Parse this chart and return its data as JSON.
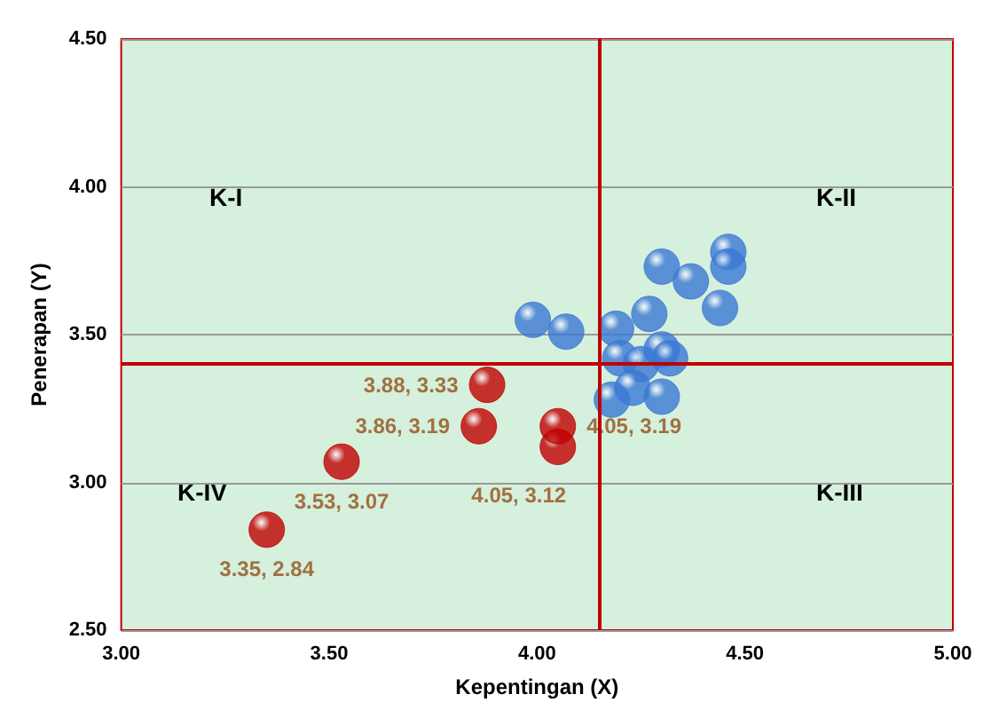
{
  "chart_data": {
    "type": "scatter",
    "xlabel": "Kepentingan (X)",
    "ylabel": "Penerapan (Y)",
    "xlim": [
      3,
      5
    ],
    "ylim": [
      2.5,
      4.5
    ],
    "xticks": [
      {
        "value": 3,
        "label": "3.00"
      },
      {
        "value": 3.5,
        "label": "3.50"
      },
      {
        "value": 4,
        "label": "4.00"
      },
      {
        "value": 4.5,
        "label": "4.50"
      },
      {
        "value": 5,
        "label": "5.00"
      }
    ],
    "yticks": [
      {
        "value": 2.5,
        "label": "2.50"
      },
      {
        "value": 3,
        "label": "3.00"
      },
      {
        "value": 3.5,
        "label": "3.50"
      },
      {
        "value": 4,
        "label": "4.00"
      },
      {
        "value": 4.5,
        "label": "4.50"
      }
    ],
    "grid": "y",
    "marker": "circle",
    "series": [
      {
        "color": "#3a78d4",
        "x": [
          3.99,
          4.07,
          4.19,
          4.27,
          4.3,
          4.37,
          4.46,
          4.46,
          4.44,
          4.3,
          4.32,
          4.2,
          4.25,
          4.18,
          4.23,
          4.3
        ],
        "values": [
          3.55,
          3.51,
          3.52,
          3.57,
          3.73,
          3.68,
          3.78,
          3.73,
          3.59,
          3.45,
          3.42,
          3.42,
          3.4,
          3.28,
          3.32,
          3.29
        ]
      },
      {
        "color": "#c00000",
        "x": [
          3.35,
          3.53,
          3.86,
          3.88,
          4.05,
          4.05
        ],
        "values": [
          2.84,
          3.07,
          3.19,
          3.33,
          3.12,
          3.19
        ],
        "value_labels": [
          "3.35, 2.84",
          "3.53, 3.07",
          "3.86, 3.19",
          "3.88, 3.33",
          "4.05, 3.12",
          "4.05, 3.19"
        ]
      }
    ],
    "ref_lines": [
      {
        "axis": "x",
        "value": 4.15,
        "color": "#c00000"
      },
      {
        "axis": "y",
        "value": 3.4,
        "color": "#c00000"
      }
    ],
    "annotations": [
      "K-I",
      "K-II",
      "K-III",
      "K-IV"
    ]
  }
}
